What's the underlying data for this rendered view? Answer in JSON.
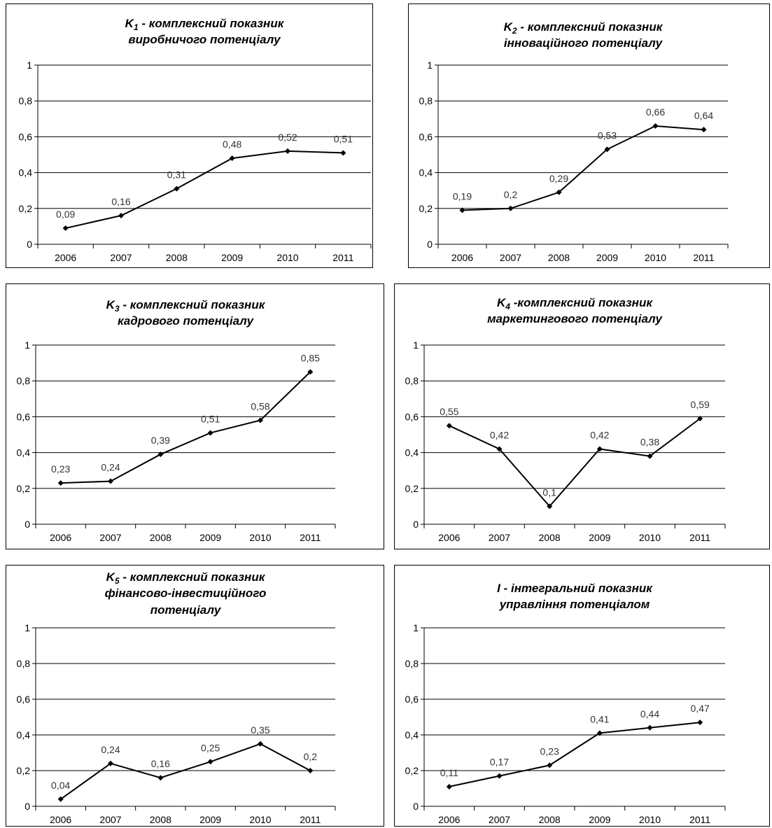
{
  "chart_data": [
    {
      "type": "line",
      "title": {
        "symbol": "K",
        "sub": "1",
        "text": " - комплексний показник",
        "line2": "виробничого потенціалу"
      },
      "x": [
        "2006",
        "2007",
        "2008",
        "2009",
        "2010",
        "2011"
      ],
      "values": [
        0.09,
        0.16,
        0.31,
        0.48,
        0.52,
        0.51
      ],
      "labels": [
        "0,09",
        "0,16",
        "0,31",
        "0,48",
        "0,52",
        "0,51"
      ],
      "yticks": [
        "0",
        "0,2",
        "0,4",
        "0,6",
        "0,8",
        "1"
      ],
      "ylim": [
        0,
        1
      ],
      "grid": true,
      "legend": "none"
    },
    {
      "type": "line",
      "title": {
        "symbol": "K",
        "sub": "2",
        "text": "  - комплексний показник",
        "line2": "інноваційного  потенціалу"
      },
      "x": [
        "2006",
        "2007",
        "2008",
        "2009",
        "2010",
        "2011"
      ],
      "values": [
        0.19,
        0.2,
        0.29,
        0.53,
        0.66,
        0.64
      ],
      "labels": [
        "0,19",
        "0,2",
        "0,29",
        "0,53",
        "0,66",
        "0,64"
      ],
      "yticks": [
        "0",
        "0,2",
        "0,4",
        "0,6",
        "0,8",
        "1"
      ],
      "ylim": [
        0,
        1
      ],
      "grid": true,
      "legend": "none"
    },
    {
      "type": "line",
      "title": {
        "symbol": "K",
        "sub": "3",
        "text": "  - комплексний показник",
        "line2": "кадрового  потенціалу"
      },
      "x": [
        "2006",
        "2007",
        "2008",
        "2009",
        "2010",
        "2011"
      ],
      "values": [
        0.23,
        0.24,
        0.39,
        0.51,
        0.58,
        0.85
      ],
      "labels": [
        "0,23",
        "0,24",
        "0,39",
        "0,51",
        "0,58",
        "0,85"
      ],
      "yticks": [
        "0",
        "0,2",
        "0,4",
        "0,6",
        "0,8",
        "1"
      ],
      "ylim": [
        0,
        1
      ],
      "grid": true,
      "legend": "none"
    },
    {
      "type": "line",
      "title": {
        "symbol": "K",
        "sub": "4",
        "text": "  -комплексний показник",
        "line2": "маркетингового  потенціалу"
      },
      "x": [
        "2006",
        "2007",
        "2008",
        "2009",
        "2010",
        "2011"
      ],
      "values": [
        0.55,
        0.42,
        0.1,
        0.42,
        0.38,
        0.59
      ],
      "labels": [
        "0,55",
        "0,42",
        "0,1",
        "0,42",
        "0,38",
        "0,59"
      ],
      "yticks": [
        "0",
        "0,2",
        "0,4",
        "0,6",
        "0,8",
        "1"
      ],
      "ylim": [
        0,
        1
      ],
      "grid": true,
      "legend": "none"
    },
    {
      "type": "line",
      "title": {
        "symbol": "K",
        "sub": "5",
        "text": "  - комплексний показник",
        "line2": "фінансово-інвестиційного",
        "line3": "потенціалу"
      },
      "x": [
        "2006",
        "2007",
        "2008",
        "2009",
        "2010",
        "2011"
      ],
      "values": [
        0.04,
        0.24,
        0.16,
        0.25,
        0.35,
        0.2
      ],
      "labels": [
        "0,04",
        "0,24",
        "0,16",
        "0,25",
        "0,35",
        "0,2"
      ],
      "yticks": [
        "0",
        "0,2",
        "0,4",
        "0,6",
        "0,8",
        "1"
      ],
      "ylim": [
        0,
        1
      ],
      "grid": true,
      "legend": "none"
    },
    {
      "type": "line",
      "title": {
        "symbol": "I",
        "sub": "",
        "text": "  - інтегральний показник",
        "line2": "управління  потенціалом"
      },
      "x": [
        "2006",
        "2007",
        "2008",
        "2009",
        "2010",
        "2011"
      ],
      "values": [
        0.11,
        0.17,
        0.23,
        0.41,
        0.44,
        0.47
      ],
      "labels": [
        "0,11",
        "0,17",
        "0,23",
        "0,41",
        "0,44",
        "0,47"
      ],
      "yticks": [
        "0",
        "0,2",
        "0,4",
        "0,6",
        "0,8",
        "1"
      ],
      "ylim": [
        0,
        1
      ],
      "grid": true,
      "legend": "none"
    }
  ]
}
